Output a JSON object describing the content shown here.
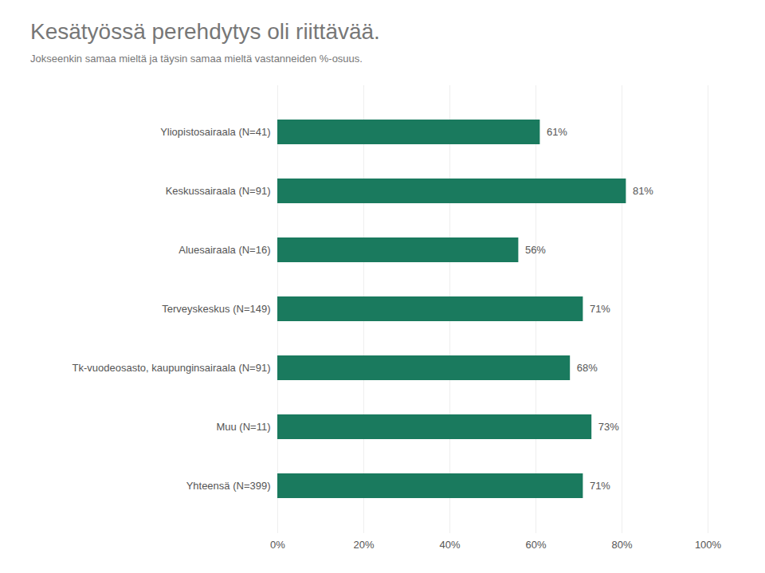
{
  "chart_data": {
    "type": "bar",
    "orientation": "horizontal",
    "title": "Kesätyössä perehdytys oli riittävää.",
    "subtitle": "Jokseenkin samaa mieltä ja täysin samaa mieltä vastanneiden %-osuus.",
    "categories": [
      "Yliopistosairaala (N=41)",
      "Keskussairaala (N=91)",
      "Aluesairaala (N=16)",
      "Terveyskeskus (N=149)",
      "Tk-vuodeosasto, kaupunginsairaala (N=91)",
      "Muu (N=11)",
      "Yhteensä (N=399)"
    ],
    "values": [
      61,
      81,
      56,
      71,
      68,
      73,
      71
    ],
    "value_labels": [
      "61%",
      "81%",
      "56%",
      "71%",
      "68%",
      "73%",
      "71%"
    ],
    "data_labels": true,
    "color": "#1a7a5e",
    "xlim": [
      0,
      100
    ],
    "xticks": [
      {
        "value": 0,
        "label": "0%"
      },
      {
        "value": 20,
        "label": "20%"
      },
      {
        "value": 40,
        "label": "40%"
      },
      {
        "value": 60,
        "label": "60%"
      },
      {
        "value": 80,
        "label": "80%"
      },
      {
        "value": 100,
        "label": "100%"
      }
    ],
    "grid": true
  }
}
